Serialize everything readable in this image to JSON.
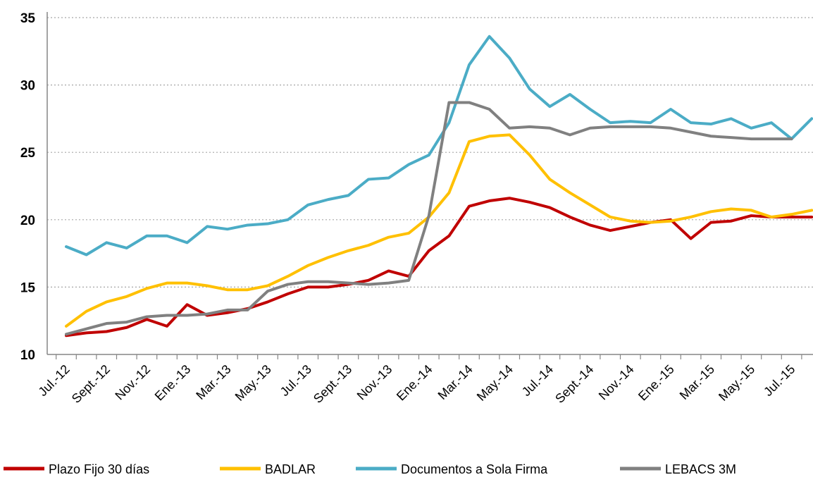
{
  "chart_data": {
    "type": "line",
    "categories": [
      "Jul.-12",
      null,
      "Sept.-12",
      null,
      "Nov.-12",
      null,
      "Ene.-13",
      null,
      "Mar.-13",
      null,
      "May.-13",
      null,
      "Jul.-13",
      null,
      "Sept.-13",
      null,
      "Nov.-13",
      null,
      "Ene.-14",
      null,
      "Mar.-14",
      null,
      "May.-14",
      null,
      "Jul.-14",
      null,
      "Sept.-14",
      null,
      "Nov.-14",
      null,
      "Ene.-15",
      null,
      "Mar.-15",
      null,
      "May.-15",
      null,
      "Jul.-15",
      null
    ],
    "series": [
      {
        "name": "Plazo Fijo 30 días",
        "color": "#c00000",
        "values": [
          11.4,
          11.6,
          11.7,
          12.0,
          12.6,
          12.1,
          13.7,
          12.9,
          13.1,
          13.4,
          13.9,
          14.5,
          15.0,
          15.0,
          15.2,
          15.5,
          16.2,
          15.8,
          17.7,
          18.8,
          21.0,
          21.4,
          21.6,
          21.3,
          20.9,
          20.2,
          19.6,
          19.2,
          19.5,
          19.8,
          20.0,
          18.6,
          19.8,
          19.9,
          20.3,
          20.2,
          20.2,
          20.2
        ]
      },
      {
        "name": "BADLAR",
        "color": "#ffc000",
        "values": [
          12.1,
          13.2,
          13.9,
          14.3,
          14.9,
          15.3,
          15.3,
          15.1,
          14.8,
          14.8,
          15.1,
          15.8,
          16.6,
          17.2,
          17.7,
          18.1,
          18.7,
          19.0,
          20.2,
          22.0,
          25.8,
          26.2,
          26.3,
          24.8,
          23.0,
          22.0,
          21.1,
          20.2,
          19.9,
          19.8,
          19.9,
          20.2,
          20.6,
          20.8,
          20.7,
          20.2,
          20.4,
          20.7
        ]
      },
      {
        "name": "Documentos a Sola Firma",
        "color": "#4bacc6",
        "values": [
          18.0,
          17.4,
          18.3,
          17.9,
          18.8,
          18.8,
          18.3,
          19.5,
          19.3,
          19.6,
          19.7,
          20.0,
          21.1,
          21.5,
          21.8,
          23.0,
          23.1,
          24.1,
          24.8,
          27.2,
          31.5,
          33.6,
          32.0,
          29.7,
          28.4,
          29.3,
          28.2,
          27.2,
          27.3,
          27.2,
          28.2,
          27.2,
          27.1,
          27.5,
          26.8,
          27.2,
          26.0,
          27.5
        ]
      },
      {
        "name": "LEBACS 3M",
        "color": "#808080",
        "values": [
          11.5,
          11.9,
          12.3,
          12.4,
          12.8,
          12.9,
          12.9,
          13.0,
          13.3,
          13.3,
          14.7,
          15.2,
          15.4,
          15.4,
          15.3,
          15.2,
          15.3,
          15.5,
          20.3,
          28.7,
          28.7,
          28.2,
          26.8,
          26.9,
          26.8,
          26.3,
          26.8,
          26.9,
          26.9,
          26.9,
          26.8,
          26.5,
          26.2,
          26.1,
          26.0,
          26.0,
          26.0,
          null
        ]
      }
    ],
    "ylim": [
      10,
      35
    ],
    "yticks": [
      10,
      15,
      20,
      25,
      30,
      35
    ],
    "grid": true,
    "legend": "bottom"
  }
}
